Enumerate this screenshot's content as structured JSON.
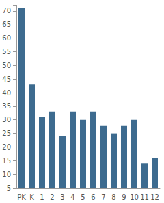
{
  "chart_data": {
    "type": "bar",
    "categories": [
      "PK",
      "K",
      "1",
      "2",
      "3",
      "4",
      "5",
      "6",
      "7",
      "8",
      "9",
      "10",
      "11",
      "12"
    ],
    "values": [
      71,
      43,
      31,
      33,
      24,
      33,
      30,
      33,
      28,
      25,
      28,
      30,
      14,
      16
    ],
    "color": "#3d6b8f",
    "ylim": [
      5,
      72
    ],
    "yticks": [
      5,
      10,
      15,
      20,
      25,
      30,
      35,
      40,
      45,
      50,
      55,
      60,
      65,
      70
    ],
    "grid": false
  }
}
